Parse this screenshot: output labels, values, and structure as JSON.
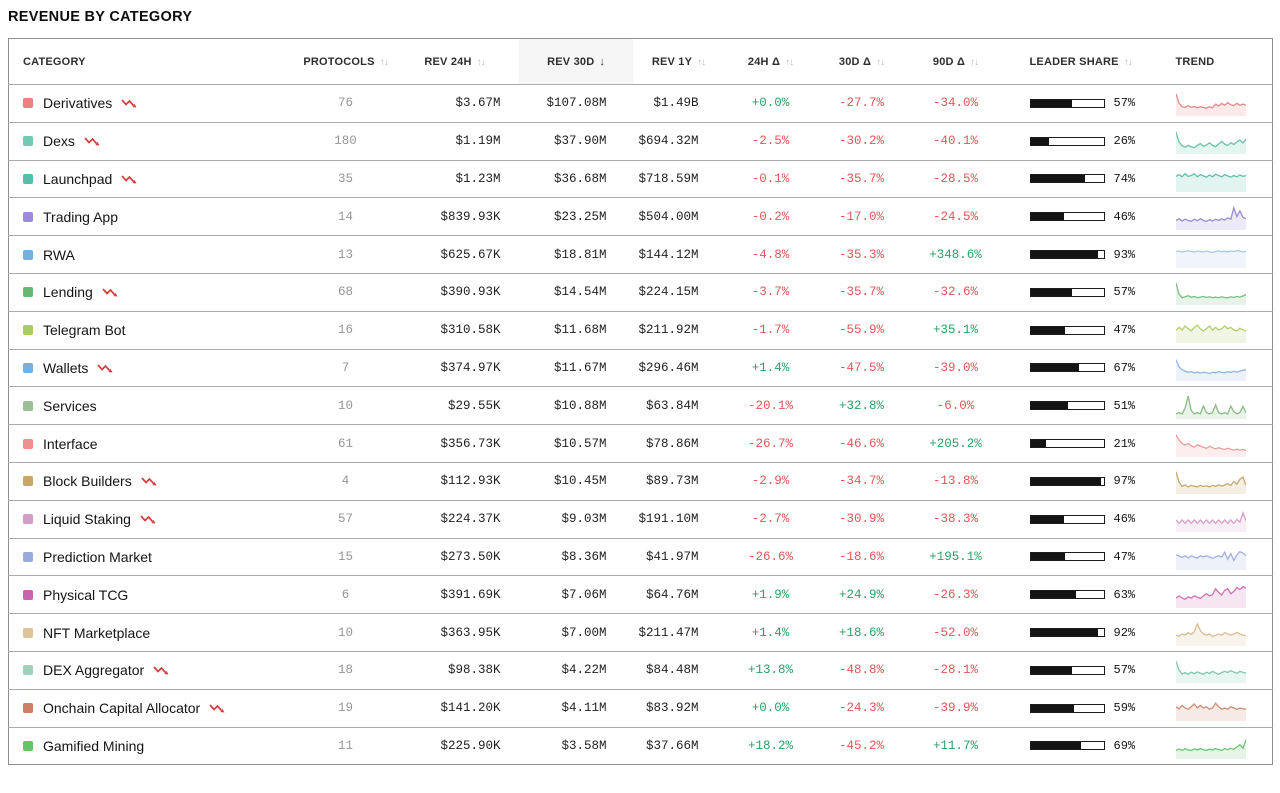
{
  "page": {
    "title": "REVENUE BY CATEGORY"
  },
  "colors": {
    "positive": "#2aa268",
    "negative": "#e05858",
    "bar_fill": "#141414",
    "sorted_header_bg": "#f6f6f6",
    "decline_icon": "#d93c3c"
  },
  "table": {
    "columns": [
      {
        "key": "category",
        "label": "CATEGORY",
        "sortable": false,
        "sort_icon": ""
      },
      {
        "key": "protocols",
        "label": "PROTOCOLS",
        "sortable": true,
        "sort_icon": "↑↓"
      },
      {
        "key": "rev24h",
        "label": "REV 24H",
        "sortable": true,
        "sort_icon": "↑↓"
      },
      {
        "key": "rev30d",
        "label": "REV 30D",
        "sortable": true,
        "sorted": "desc",
        "sort_icon": "↓"
      },
      {
        "key": "rev1y",
        "label": "REV 1Y",
        "sortable": true,
        "sort_icon": "↑↓"
      },
      {
        "key": "d24",
        "label": "24H Δ",
        "sortable": true,
        "sort_icon": "↑↓"
      },
      {
        "key": "d30",
        "label": "30D Δ",
        "sortable": true,
        "sort_icon": "↑↓"
      },
      {
        "key": "d90",
        "label": "90D Δ",
        "sortable": true,
        "sort_icon": "↑↓"
      },
      {
        "key": "leader",
        "label": "LEADER SHARE",
        "sortable": true,
        "sort_icon": "↑↓"
      },
      {
        "key": "trend",
        "label": "TREND",
        "sortable": false,
        "sort_icon": ""
      }
    ],
    "rows": [
      {
        "category": "Derivatives",
        "swatch": "#e8837d",
        "declining": true,
        "protocols": "76",
        "rev24h": "$3.67M",
        "rev30d": "$107.08M",
        "rev1y": "$1.49B",
        "d24": "+0.0%",
        "d30": "-27.7%",
        "d90": "-34.0%",
        "leader_share": "57%",
        "leader_pct": 57,
        "trend_color": "#e28b85",
        "spark": [
          0.92,
          0.5,
          0.33,
          0.3,
          0.38,
          0.3,
          0.34,
          0.28,
          0.33,
          0.3,
          0.26,
          0.33,
          0.28,
          0.45,
          0.36,
          0.48,
          0.4,
          0.52,
          0.42,
          0.38,
          0.48,
          0.4,
          0.45,
          0.4
        ]
      },
      {
        "category": "Dexs",
        "swatch": "#6fcab0",
        "declining": true,
        "protocols": "180",
        "rev24h": "$1.19M",
        "rev30d": "$37.90M",
        "rev1y": "$694.32M",
        "d24": "-2.5%",
        "d30": "-30.2%",
        "d90": "-40.1%",
        "leader_share": "26%",
        "leader_pct": 26,
        "trend_color": "#6ac2a7",
        "spark": [
          0.9,
          0.45,
          0.28,
          0.22,
          0.3,
          0.24,
          0.2,
          0.3,
          0.38,
          0.26,
          0.32,
          0.42,
          0.3,
          0.24,
          0.36,
          0.48,
          0.36,
          0.3,
          0.42,
          0.34,
          0.46,
          0.54,
          0.42,
          0.58
        ]
      },
      {
        "category": "Launchpad",
        "swatch": "#55bfab",
        "declining": true,
        "protocols": "35",
        "rev24h": "$1.23M",
        "rev30d": "$36.68M",
        "rev1y": "$718.59M",
        "d24": "-0.1%",
        "d30": "-35.7%",
        "d90": "-28.5%",
        "leader_share": "74%",
        "leader_pct": 74,
        "trend_color": "#5fc0ab",
        "spark": [
          0.62,
          0.7,
          0.6,
          0.74,
          0.62,
          0.66,
          0.74,
          0.6,
          0.7,
          0.64,
          0.58,
          0.68,
          0.6,
          0.72,
          0.66,
          0.6,
          0.7,
          0.64,
          0.58,
          0.66,
          0.6,
          0.68,
          0.62,
          0.66
        ]
      },
      {
        "category": "Trading App",
        "swatch": "#9c8cd6",
        "declining": false,
        "protocols": "14",
        "rev24h": "$839.93K",
        "rev30d": "$23.25M",
        "rev1y": "$504.00M",
        "d24": "-0.2%",
        "d30": "-17.0%",
        "d90": "-24.5%",
        "leader_share": "46%",
        "leader_pct": 46,
        "trend_color": "#9a8cd4",
        "spark": [
          0.34,
          0.42,
          0.32,
          0.4,
          0.34,
          0.3,
          0.4,
          0.33,
          0.42,
          0.34,
          0.3,
          0.38,
          0.32,
          0.4,
          0.34,
          0.42,
          0.36,
          0.46,
          0.4,
          0.92,
          0.52,
          0.78,
          0.48,
          0.42
        ]
      },
      {
        "category": "RWA",
        "swatch": "#6fb1e3",
        "declining": false,
        "protocols": "13",
        "rev24h": "$625.67K",
        "rev30d": "$18.81M",
        "rev1y": "$144.12M",
        "d24": "-4.8%",
        "d30": "-35.3%",
        "d90": "+348.6%",
        "leader_share": "93%",
        "leader_pct": 93,
        "trend_color": "#a9c9e8",
        "spark": [
          0.66,
          0.68,
          0.63,
          0.66,
          0.7,
          0.66,
          0.63,
          0.68,
          0.66,
          0.64,
          0.68,
          0.65,
          0.62,
          0.66,
          0.69,
          0.65,
          0.67,
          0.64,
          0.68,
          0.66,
          0.7,
          0.67,
          0.64,
          0.67
        ]
      },
      {
        "category": "Lending",
        "swatch": "#67b671",
        "declining": true,
        "protocols": "68",
        "rev24h": "$390.93K",
        "rev30d": "$14.54M",
        "rev1y": "$224.15M",
        "d24": "-3.7%",
        "d30": "-35.7%",
        "d90": "-32.6%",
        "leader_share": "57%",
        "leader_pct": 57,
        "trend_color": "#7abd85",
        "spark": [
          0.92,
          0.4,
          0.24,
          0.28,
          0.33,
          0.26,
          0.3,
          0.24,
          0.27,
          0.3,
          0.25,
          0.28,
          0.24,
          0.27,
          0.24,
          0.28,
          0.25,
          0.23,
          0.28,
          0.25,
          0.3,
          0.27,
          0.32,
          0.38
        ]
      },
      {
        "category": "Telegram Bot",
        "swatch": "#a9cd5f",
        "declining": false,
        "protocols": "16",
        "rev24h": "$310.58K",
        "rev30d": "$11.68M",
        "rev1y": "$211.92M",
        "d24": "-1.7%",
        "d30": "-55.9%",
        "d90": "+35.1%",
        "leader_share": "47%",
        "leader_pct": 47,
        "trend_color": "#b3cf6c",
        "spark": [
          0.48,
          0.62,
          0.5,
          0.68,
          0.56,
          0.46,
          0.62,
          0.72,
          0.56,
          0.46,
          0.56,
          0.68,
          0.5,
          0.62,
          0.5,
          0.56,
          0.68,
          0.56,
          0.62,
          0.5,
          0.46,
          0.58,
          0.5,
          0.46
        ]
      },
      {
        "category": "Wallets",
        "swatch": "#6fb1e3",
        "declining": true,
        "protocols": "7",
        "rev24h": "$374.97K",
        "rev30d": "$11.67M",
        "rev1y": "$296.46M",
        "d24": "+1.4%",
        "d30": "-47.5%",
        "d90": "-39.0%",
        "leader_share": "67%",
        "leader_pct": 67,
        "trend_color": "#91b7e0",
        "spark": [
          0.88,
          0.55,
          0.42,
          0.36,
          0.3,
          0.34,
          0.28,
          0.31,
          0.27,
          0.31,
          0.28,
          0.25,
          0.31,
          0.28,
          0.33,
          0.3,
          0.28,
          0.33,
          0.3,
          0.35,
          0.31,
          0.36,
          0.4,
          0.42
        ]
      },
      {
        "category": "Services",
        "swatch": "#9cc095",
        "declining": false,
        "protocols": "10",
        "rev24h": "$29.55K",
        "rev30d": "$10.88M",
        "rev1y": "$63.84M",
        "d24": "-20.1%",
        "d30": "+32.8%",
        "d90": "-6.0%",
        "leader_share": "51%",
        "leader_pct": 51,
        "trend_color": "#8cbb87",
        "spark": [
          0.14,
          0.2,
          0.14,
          0.4,
          0.95,
          0.3,
          0.14,
          0.2,
          0.14,
          0.5,
          0.2,
          0.14,
          0.2,
          0.55,
          0.2,
          0.14,
          0.2,
          0.14,
          0.5,
          0.24,
          0.14,
          0.2,
          0.48,
          0.18
        ]
      },
      {
        "category": "Interface",
        "swatch": "#ef9090",
        "declining": false,
        "protocols": "61",
        "rev24h": "$356.73K",
        "rev30d": "$10.57M",
        "rev1y": "$78.86M",
        "d24": "-26.7%",
        "d30": "-46.6%",
        "d90": "+205.2%",
        "leader_share": "21%",
        "leader_pct": 21,
        "trend_color": "#eb9f9c",
        "spark": [
          0.92,
          0.68,
          0.52,
          0.46,
          0.52,
          0.42,
          0.36,
          0.46,
          0.4,
          0.36,
          0.3,
          0.4,
          0.33,
          0.28,
          0.33,
          0.28,
          0.25,
          0.31,
          0.26,
          0.22,
          0.27,
          0.22,
          0.26,
          0.2
        ]
      },
      {
        "category": "Block Builders",
        "swatch": "#c7a56c",
        "declining": true,
        "protocols": "4",
        "rev24h": "$112.93K",
        "rev30d": "$10.45M",
        "rev1y": "$89.73M",
        "d24": "-2.9%",
        "d30": "-34.7%",
        "d90": "-13.8%",
        "leader_share": "97%",
        "leader_pct": 97,
        "trend_color": "#c8a66e",
        "spark": [
          0.92,
          0.45,
          0.26,
          0.32,
          0.23,
          0.3,
          0.26,
          0.23,
          0.3,
          0.25,
          0.28,
          0.23,
          0.3,
          0.26,
          0.32,
          0.27,
          0.32,
          0.38,
          0.3,
          0.48,
          0.36,
          0.58,
          0.68,
          0.3
        ]
      },
      {
        "category": "Liquid Staking",
        "swatch": "#d69cc8",
        "declining": true,
        "protocols": "57",
        "rev24h": "$224.37K",
        "rev30d": "$9.03M",
        "rev1y": "$191.10M",
        "d24": "-2.7%",
        "d30": "-30.9%",
        "d90": "-38.3%",
        "leader_share": "46%",
        "leader_pct": 46,
        "trend_color": "#d69fc9",
        "spark": [
          0.46,
          0.3,
          0.46,
          0.3,
          0.46,
          0.3,
          0.46,
          0.3,
          0.46,
          0.3,
          0.46,
          0.3,
          0.46,
          0.3,
          0.46,
          0.3,
          0.46,
          0.3,
          0.46,
          0.3,
          0.48,
          0.36,
          0.78,
          0.42
        ]
      },
      {
        "category": "Prediction Market",
        "swatch": "#99aadd",
        "declining": false,
        "protocols": "15",
        "rev24h": "$273.50K",
        "rev30d": "$8.36M",
        "rev1y": "$41.97M",
        "d24": "-26.6%",
        "d30": "-18.6%",
        "d90": "+195.1%",
        "leader_share": "47%",
        "leader_pct": 47,
        "trend_color": "#a2b0e0",
        "spark": [
          0.6,
          0.55,
          0.48,
          0.56,
          0.45,
          0.56,
          0.5,
          0.44,
          0.56,
          0.5,
          0.56,
          0.5,
          0.44,
          0.5,
          0.56,
          0.5,
          0.72,
          0.4,
          0.66,
          0.34,
          0.6,
          0.74,
          0.68,
          0.56
        ]
      },
      {
        "category": "Physical TCG",
        "swatch": "#c964af",
        "declining": false,
        "protocols": "6",
        "rev24h": "$391.69K",
        "rev30d": "$7.06M",
        "rev1y": "$64.76M",
        "d24": "+1.9%",
        "d30": "+24.9%",
        "d90": "-26.3%",
        "leader_share": "63%",
        "leader_pct": 63,
        "trend_color": "#cf72b4",
        "spark": [
          0.36,
          0.46,
          0.36,
          0.3,
          0.42,
          0.36,
          0.46,
          0.4,
          0.34,
          0.46,
          0.56,
          0.46,
          0.52,
          0.78,
          0.62,
          0.5,
          0.72,
          0.78,
          0.56,
          0.66,
          0.84,
          0.76,
          0.88,
          0.82
        ]
      },
      {
        "category": "NFT Marketplace",
        "swatch": "#ddc49c",
        "declining": false,
        "protocols": "10",
        "rev24h": "$363.95K",
        "rev30d": "$7.00M",
        "rev1y": "$211.47M",
        "d24": "+1.4%",
        "d30": "+18.6%",
        "d90": "-52.0%",
        "leader_share": "92%",
        "leader_pct": 92,
        "trend_color": "#d9bd90",
        "spark": [
          0.4,
          0.34,
          0.46,
          0.4,
          0.52,
          0.44,
          0.56,
          0.92,
          0.62,
          0.46,
          0.4,
          0.46,
          0.34,
          0.4,
          0.46,
          0.4,
          0.52,
          0.46,
          0.4,
          0.46,
          0.52,
          0.46,
          0.4,
          0.38
        ]
      },
      {
        "category": "DEX Aggregator",
        "swatch": "#9fd1bc",
        "declining": true,
        "protocols": "18",
        "rev24h": "$98.38K",
        "rev30d": "$4.22M",
        "rev1y": "$84.48M",
        "d24": "+13.8%",
        "d30": "-48.8%",
        "d90": "-28.1%",
        "leader_share": "57%",
        "leader_pct": 57,
        "trend_color": "#82c6ab",
        "spark": [
          0.9,
          0.5,
          0.32,
          0.38,
          0.3,
          0.4,
          0.33,
          0.42,
          0.36,
          0.3,
          0.4,
          0.34,
          0.44,
          0.37,
          0.3,
          0.38,
          0.44,
          0.39,
          0.47,
          0.41,
          0.35,
          0.44,
          0.39,
          0.36
        ]
      },
      {
        "category": "Onchain Capital Allocator",
        "swatch": "#cd7f67",
        "declining": true,
        "protocols": "19",
        "rev24h": "$141.20K",
        "rev30d": "$4.11M",
        "rev1y": "$83.92M",
        "d24": "+0.0%",
        "d30": "-24.3%",
        "d90": "-39.9%",
        "leader_share": "59%",
        "leader_pct": 59,
        "trend_color": "#ce8c75",
        "spark": [
          0.56,
          0.46,
          0.62,
          0.5,
          0.44,
          0.56,
          0.68,
          0.5,
          0.62,
          0.5,
          0.56,
          0.44,
          0.5,
          0.72,
          0.56,
          0.44,
          0.5,
          0.44,
          0.56,
          0.5,
          0.44,
          0.5,
          0.47,
          0.44
        ]
      },
      {
        "category": "Gamified Mining",
        "swatch": "#65c368",
        "declining": false,
        "protocols": "11",
        "rev24h": "$225.90K",
        "rev30d": "$3.58M",
        "rev1y": "$37.66M",
        "d24": "+18.2%",
        "d30": "-45.2%",
        "d90": "+11.7%",
        "leader_share": "69%",
        "leader_pct": 69,
        "trend_color": "#70c476",
        "spark": [
          0.3,
          0.36,
          0.3,
          0.38,
          0.32,
          0.3,
          0.37,
          0.32,
          0.38,
          0.33,
          0.3,
          0.36,
          0.32,
          0.38,
          0.34,
          0.3,
          0.38,
          0.33,
          0.4,
          0.35,
          0.46,
          0.56,
          0.4,
          0.78
        ]
      }
    ]
  }
}
